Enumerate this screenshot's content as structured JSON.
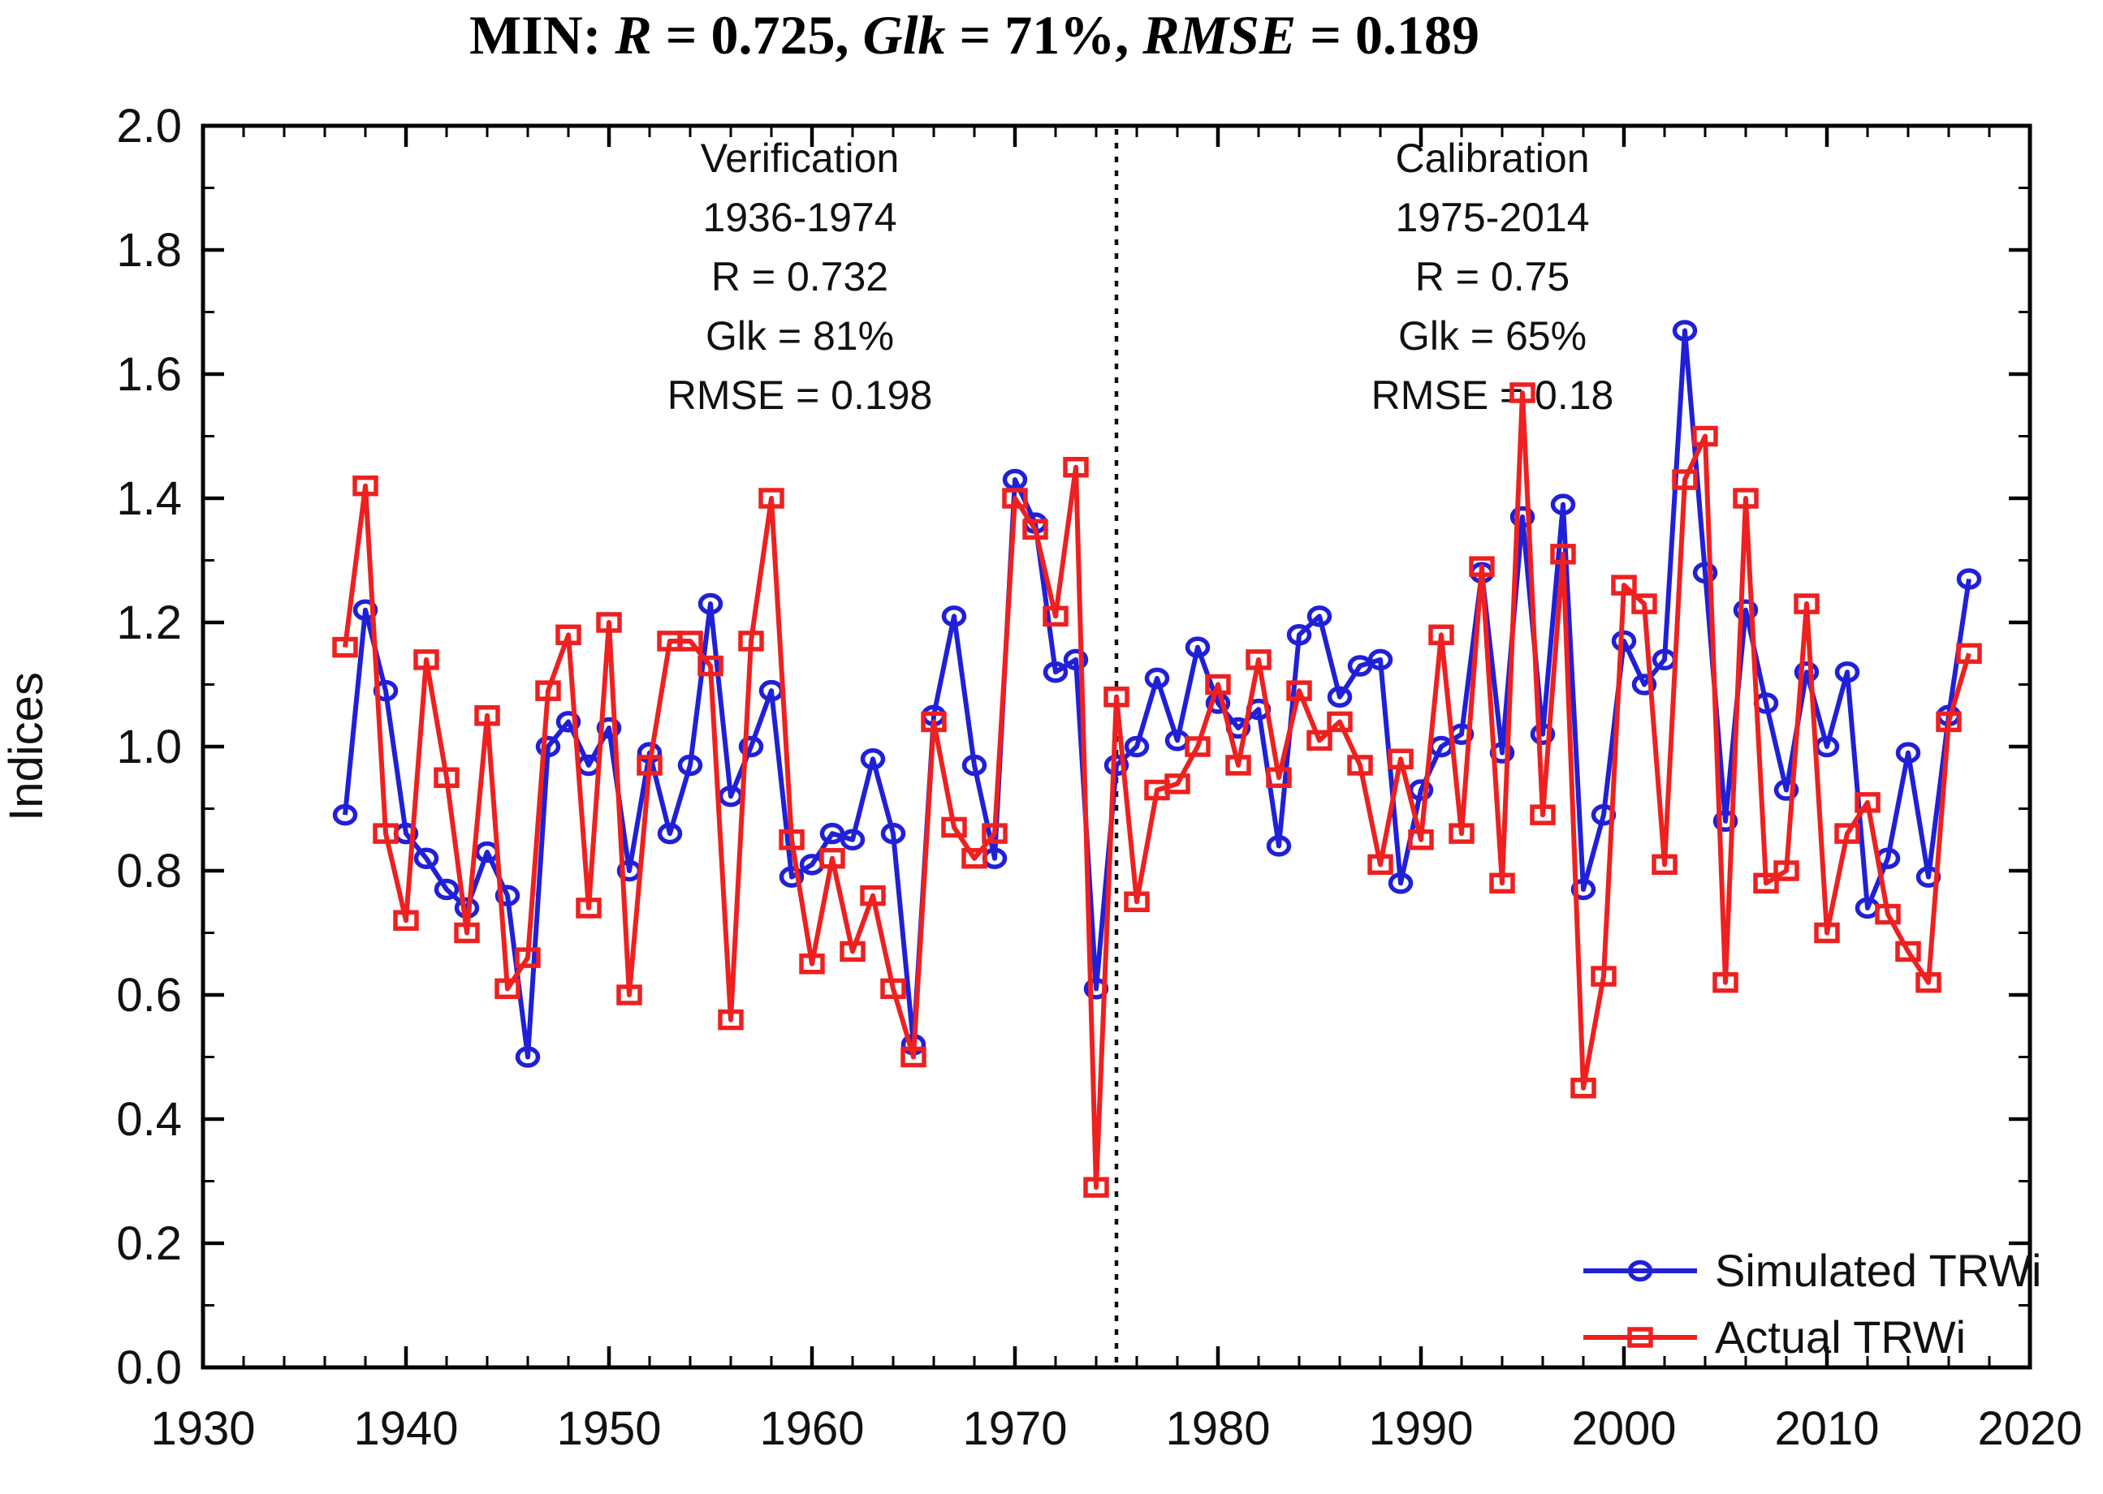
{
  "title": {
    "segments": [
      {
        "text": "MIN: ",
        "italic": false
      },
      {
        "text": "R",
        "italic": true
      },
      {
        "text": " = 0.725, ",
        "italic": false
      },
      {
        "text": "Glk",
        "italic": true
      },
      {
        "text": " = 71%, ",
        "italic": false
      },
      {
        "text": "RMSE",
        "italic": true
      },
      {
        "text": " = 0.189",
        "italic": false
      }
    ]
  },
  "axes": {
    "x": {
      "min": 1930,
      "max": 2020,
      "major_step": 10,
      "minor_step": 2,
      "labels": [
        "1930",
        "1940",
        "1950",
        "1960",
        "1970",
        "1980",
        "1990",
        "2000",
        "2010",
        "2020"
      ]
    },
    "y": {
      "min": 0.0,
      "max": 2.0,
      "major_step": 0.2,
      "minor_step": 0.1,
      "title": "Indices",
      "labels": [
        "0.0",
        "0.2",
        "0.4",
        "0.6",
        "0.8",
        "1.0",
        "1.2",
        "1.4",
        "1.6",
        "1.8",
        "2.0"
      ]
    }
  },
  "annotations": {
    "verification": {
      "lines": [
        "Verification",
        "1936-1974",
        "R = 0.732",
        "Glk = 81%",
        "RMSE = 0.198"
      ]
    },
    "calibration": {
      "lines": [
        "Calibration",
        "1975-2014",
        "R = 0.75",
        "Glk = 65%",
        "RMSE = 0.18"
      ]
    },
    "split_line_year": 1975
  },
  "legend": {
    "items": [
      {
        "label": "Simulated TRWi",
        "color": "#2020d8",
        "marker": "open-circle"
      },
      {
        "label": "Actual TRWi",
        "color": "#ee2020",
        "marker": "open-square"
      }
    ]
  },
  "chart_data": {
    "type": "line",
    "title": "MIN: R = 0.725, Glk = 71%, RMSE = 0.189",
    "xlabel": "",
    "ylabel": "Indices",
    "xlim": [
      1930,
      2020
    ],
    "ylim": [
      0.0,
      2.0
    ],
    "grid": false,
    "legend_position": "bottom-right",
    "x_years": [
      1937,
      1938,
      1939,
      1940,
      1941,
      1942,
      1943,
      1944,
      1945,
      1946,
      1947,
      1948,
      1949,
      1950,
      1951,
      1952,
      1953,
      1954,
      1955,
      1956,
      1957,
      1958,
      1959,
      1960,
      1961,
      1962,
      1963,
      1964,
      1965,
      1966,
      1967,
      1968,
      1969,
      1970,
      1971,
      1972,
      1973,
      1974,
      1975,
      1976,
      1977,
      1978,
      1979,
      1980,
      1981,
      1982,
      1983,
      1984,
      1985,
      1986,
      1987,
      1988,
      1989,
      1990,
      1991,
      1992,
      1993,
      1994,
      1995,
      1996,
      1997,
      1998,
      1999,
      2000,
      2001,
      2002,
      2003,
      2004,
      2005,
      2006,
      2007,
      2008,
      2009,
      2010,
      2011,
      2012,
      2013,
      2014,
      2015,
      2016,
      2017
    ],
    "series": [
      {
        "name": "Simulated TRWi",
        "color": "#2020d8",
        "marker": "open-circle",
        "values": [
          0.89,
          1.22,
          1.09,
          0.86,
          0.82,
          0.77,
          0.74,
          0.83,
          0.76,
          0.5,
          1.0,
          1.04,
          0.97,
          1.03,
          0.8,
          0.99,
          0.86,
          0.97,
          1.23,
          0.92,
          1.0,
          1.09,
          0.79,
          0.81,
          0.86,
          0.85,
          0.98,
          0.86,
          0.52,
          1.05,
          1.21,
          0.97,
          0.82,
          1.43,
          1.36,
          1.12,
          1.14,
          0.61,
          0.97,
          1.0,
          1.11,
          1.01,
          1.16,
          1.07,
          1.03,
          1.06,
          0.84,
          1.18,
          1.21,
          1.08,
          1.13,
          1.14,
          0.78,
          0.93,
          1.0,
          1.02,
          1.28,
          0.99,
          1.37,
          1.02,
          1.39,
          0.77,
          0.89,
          1.17,
          1.1,
          1.14,
          1.67,
          1.28,
          0.88,
          1.22,
          1.07,
          0.93,
          1.12,
          1.0,
          1.12,
          0.74,
          0.82,
          0.99,
          0.79,
          1.05,
          1.27
        ]
      },
      {
        "name": "Actual TRWi",
        "color": "#ee2020",
        "marker": "open-square",
        "values": [
          1.16,
          1.42,
          0.86,
          0.72,
          1.14,
          0.95,
          0.7,
          1.05,
          0.61,
          0.66,
          1.09,
          1.18,
          0.74,
          1.2,
          0.6,
          0.97,
          1.17,
          1.17,
          1.13,
          0.56,
          1.17,
          1.4,
          0.85,
          0.65,
          0.82,
          0.67,
          0.76,
          0.61,
          0.5,
          1.04,
          0.87,
          0.82,
          0.86,
          1.4,
          1.35,
          1.21,
          1.45,
          0.29,
          1.08,
          0.75,
          0.93,
          0.94,
          1.0,
          1.1,
          0.97,
          1.14,
          0.95,
          1.09,
          1.01,
          1.04,
          0.97,
          0.81,
          0.98,
          0.85,
          1.18,
          0.86,
          1.29,
          0.78,
          1.57,
          0.89,
          1.31,
          0.45,
          0.63,
          1.26,
          1.23,
          0.81,
          1.43,
          1.5,
          0.62,
          1.4,
          0.78,
          0.8,
          1.23,
          0.7,
          0.86,
          0.91,
          0.73,
          0.67,
          0.62,
          1.04,
          1.15
        ]
      }
    ]
  }
}
